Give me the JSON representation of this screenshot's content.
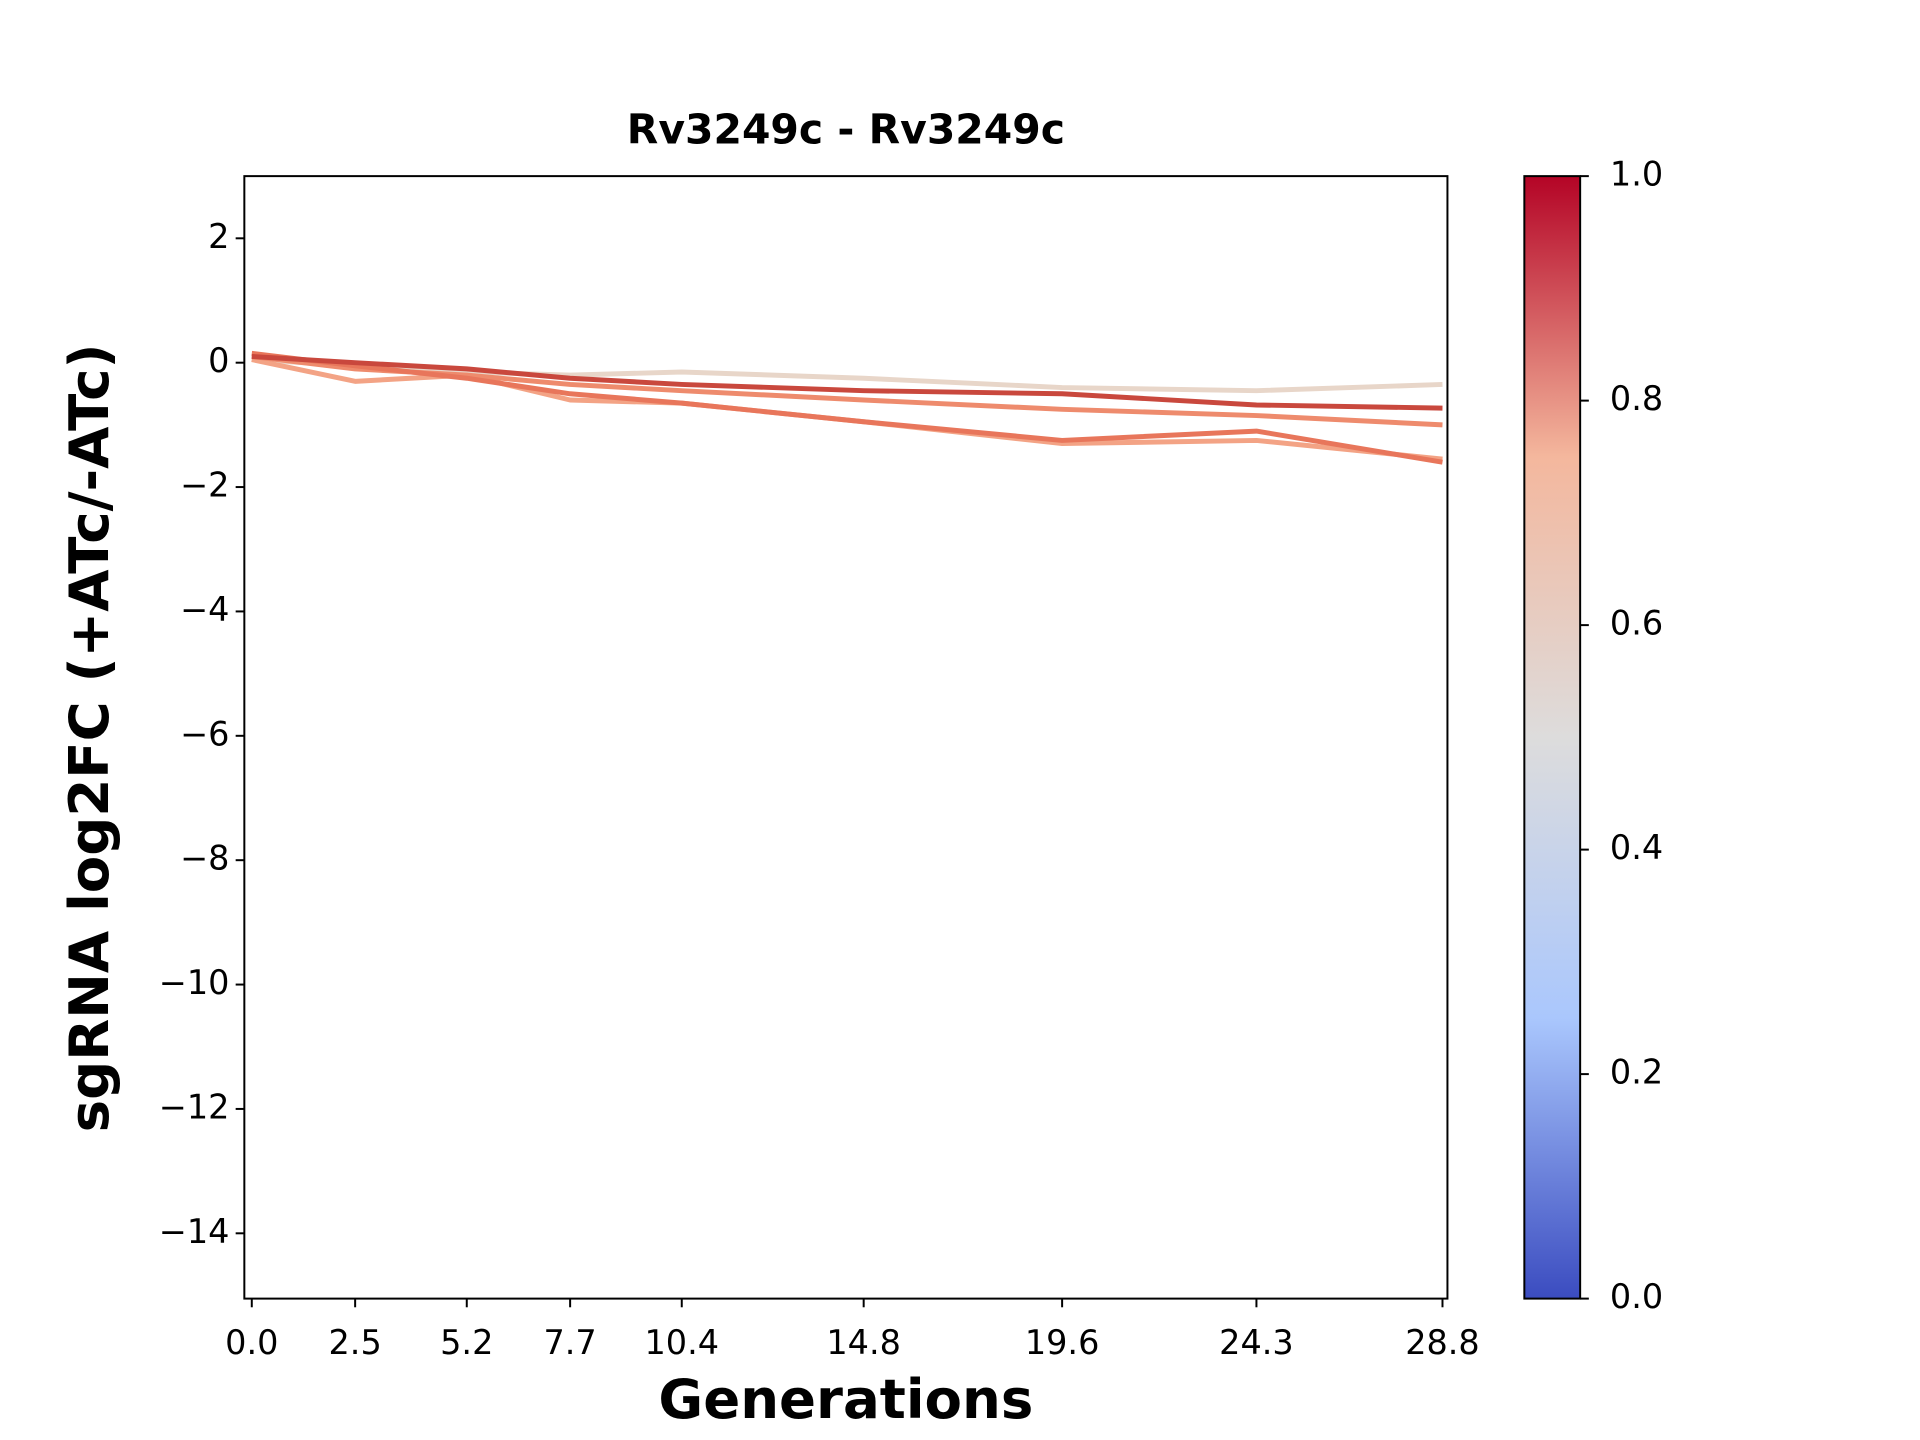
{
  "chart_data": {
    "type": "line",
    "title": "Rv3249c - Rv3249c",
    "x_label": "Generations",
    "y_label": "sgRNA log2FC (+ATc/-ATc)",
    "x": [
      0.0,
      2.5,
      5.2,
      7.7,
      10.4,
      14.8,
      19.6,
      24.3,
      28.8
    ],
    "series": [
      {
        "color": "#e8d6c9",
        "values": [
          0.05,
          -0.05,
          -0.15,
          -0.2,
          -0.15,
          -0.25,
          -0.4,
          -0.45,
          -0.35
        ]
      },
      {
        "color": "#f3a385",
        "values": [
          0.05,
          -0.3,
          -0.2,
          -0.6,
          -0.65,
          -0.95,
          -1.3,
          -1.25,
          -1.55
        ]
      },
      {
        "color": "#ee8b6d",
        "values": [
          0.1,
          -0.1,
          -0.2,
          -0.35,
          -0.45,
          -0.6,
          -0.75,
          -0.85,
          -1.0
        ]
      },
      {
        "color": "#e8765b",
        "values": [
          0.15,
          -0.05,
          -0.25,
          -0.5,
          -0.65,
          -0.95,
          -1.25,
          -1.1,
          -1.6
        ]
      },
      {
        "color": "#c9483d",
        "values": [
          0.1,
          0.0,
          -0.1,
          -0.25,
          -0.35,
          -0.45,
          -0.5,
          -0.68,
          -0.73
        ]
      }
    ],
    "xlim": [
      -0.18,
      28.92
    ],
    "xticks": [
      {
        "value": 0,
        "label": "0.0"
      },
      2.5,
      5.2,
      7.7,
      10.4,
      14.8,
      19.6,
      24.3,
      28.8
    ],
    "ylim": [
      -15.05,
      3
    ],
    "yticks": [
      {
        "value": -14,
        "label": "−14"
      },
      {
        "value": -12,
        "label": "−12"
      },
      {
        "value": -10,
        "label": "−10"
      },
      {
        "value": -8,
        "label": "−8"
      },
      {
        "value": -6,
        "label": "−6"
      },
      {
        "value": -4,
        "label": "−4"
      },
      {
        "value": -2,
        "label": "−2"
      },
      0,
      2
    ],
    "colorbar": {
      "lim": [
        0,
        1
      ],
      "colormap": [
        "#3b4cc0",
        "#aac7fd",
        "#dddcdc",
        "#f4b79d",
        "#b40426"
      ],
      "ticks": [
        {
          "value": 0,
          "label": "0.0"
        },
        {
          "value": 0.2,
          "label": "0.2"
        },
        {
          "value": 0.4,
          "label": "0.4"
        },
        {
          "value": 0.6,
          "label": "0.6"
        },
        {
          "value": 0.8,
          "label": "0.8"
        },
        {
          "value": 1,
          "label": "1.0"
        }
      ]
    }
  }
}
